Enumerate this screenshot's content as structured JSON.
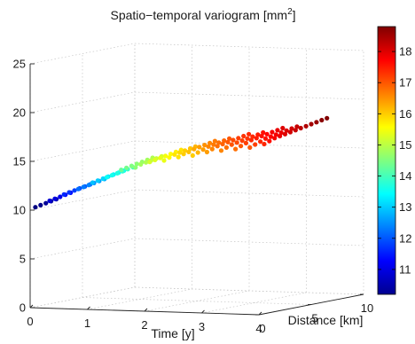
{
  "chart_data": {
    "type": "scatter",
    "title": "Spatio−temporal variogram [mm",
    "title_superscript": "2",
    "title_suffix": "]",
    "xlabel": "Distance [km]",
    "ylabel": "Time [y]",
    "zlabel": "",
    "x_ticks": [
      "0",
      "5",
      "10"
    ],
    "y_ticks": [
      "0",
      "1",
      "2",
      "3",
      "4"
    ],
    "z_ticks": [
      "0",
      "5",
      "10",
      "15",
      "20",
      "25"
    ],
    "xlim": [
      0,
      10
    ],
    "ylim": [
      0,
      4
    ],
    "zlim": [
      0,
      25
    ],
    "grid": true,
    "colormap": "jet",
    "colorbar": {
      "range": [
        10.2,
        18.8
      ],
      "ticks": [
        "11",
        "12",
        "13",
        "14",
        "15",
        "16",
        "17",
        "18"
      ]
    },
    "distance_lags": [
      0.5,
      1,
      1.5,
      2,
      2.5,
      3,
      3.5,
      4,
      4.5,
      5,
      5.5,
      6,
      6.5,
      7,
      7.5,
      8,
      8.5,
      9,
      9.5
    ],
    "time_lags": [
      0,
      0.25,
      0.5,
      0.75,
      1,
      1.25,
      1.5,
      1.75,
      2,
      2.25,
      2.5,
      2.75,
      3,
      3.25,
      3.5,
      3.75,
      4
    ],
    "series": [
      {
        "time": 0,
        "values": [
          10.2,
          10.3,
          10.4,
          10.5,
          10.6
        ]
      },
      {
        "time": 0.25,
        "values": [
          10.9,
          11.0,
          11.1,
          11.2,
          11.3
        ]
      },
      {
        "time": 0.5,
        "values": [
          11.6,
          11.7,
          11.8,
          11.9,
          12.0,
          12.1
        ]
      },
      {
        "time": 0.75,
        "values": [
          12.2,
          12.3,
          12.4,
          12.5,
          12.6,
          12.7
        ]
      },
      {
        "time": 1,
        "values": [
          12.9,
          13.0,
          13.1,
          13.2,
          13.3,
          13.4,
          13.5
        ]
      },
      {
        "time": 1.25,
        "values": [
          13.5,
          13.6,
          13.7,
          13.8,
          13.9,
          14.0
        ]
      },
      {
        "time": 1.5,
        "values": [
          14.3,
          14.4,
          14.5,
          14.6,
          14.7,
          14.8,
          14.9
        ]
      },
      {
        "time": 1.75,
        "values": [
          14.6,
          14.8,
          14.9,
          15.0,
          15.1,
          15.2
        ]
      },
      {
        "time": 2,
        "values": [
          15.2,
          15.3,
          15.4,
          15.5,
          15.6,
          15.7,
          15.8
        ]
      },
      {
        "time": 2.25,
        "values": [
          15.4,
          15.6,
          15.8,
          15.9,
          16.0,
          16.1,
          16.2
        ]
      },
      {
        "time": 2.5,
        "values": [
          15.8,
          16.0,
          16.1,
          16.3,
          16.4,
          16.5,
          16.6,
          16.7
        ]
      },
      {
        "time": 2.75,
        "values": [
          16.0,
          16.2,
          16.4,
          16.6,
          16.7,
          16.8,
          16.9,
          17.0
        ]
      },
      {
        "time": 3,
        "values": [
          16.4,
          16.6,
          16.8,
          16.9,
          17.0,
          17.1,
          17.2,
          17.3,
          17.4
        ]
      },
      {
        "time": 3.25,
        "values": [
          16.6,
          16.8,
          17.0,
          17.1,
          17.2,
          17.3,
          17.4,
          17.5,
          17.6
        ]
      },
      {
        "time": 3.5,
        "values": [
          16.8,
          17.0,
          17.2,
          17.4,
          17.5,
          17.6,
          17.7,
          17.8,
          17.9,
          18.0
        ]
      },
      {
        "time": 3.75,
        "values": [
          17.0,
          17.2,
          17.4,
          17.6,
          17.7,
          17.8,
          17.9,
          18.0,
          18.1,
          18.2
        ]
      },
      {
        "time": 4,
        "values": [
          17.4,
          17.6,
          17.8,
          17.9,
          18.0,
          18.1,
          18.2,
          18.3,
          18.4,
          18.5,
          18.6,
          18.7,
          18.8
        ]
      }
    ]
  }
}
